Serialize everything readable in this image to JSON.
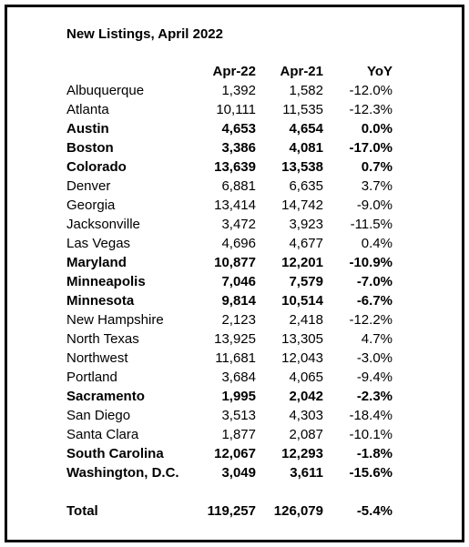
{
  "title": "New Listings, April 2022",
  "table": {
    "columns": [
      "Apr-22",
      "Apr-21",
      "YoY"
    ],
    "rows": [
      {
        "cells": [
          "Albuquerque",
          "1,392",
          "1,582",
          "-12.0%"
        ],
        "bold": false
      },
      {
        "cells": [
          "Atlanta",
          "10,111",
          "11,535",
          "-12.3%"
        ],
        "bold": false
      },
      {
        "cells": [
          "Austin",
          "4,653",
          "4,654",
          "0.0%"
        ],
        "bold": true
      },
      {
        "cells": [
          "Boston",
          "3,386",
          "4,081",
          "-17.0%"
        ],
        "bold": true
      },
      {
        "cells": [
          "Colorado",
          "13,639",
          "13,538",
          "0.7%"
        ],
        "bold": true
      },
      {
        "cells": [
          "Denver",
          "6,881",
          "6,635",
          "3.7%"
        ],
        "bold": false
      },
      {
        "cells": [
          "Georgia",
          "13,414",
          "14,742",
          "-9.0%"
        ],
        "bold": false
      },
      {
        "cells": [
          "Jacksonville",
          "3,472",
          "3,923",
          "-11.5%"
        ],
        "bold": false
      },
      {
        "cells": [
          "Las Vegas",
          "4,696",
          "4,677",
          "0.4%"
        ],
        "bold": false
      },
      {
        "cells": [
          "Maryland",
          "10,877",
          "12,201",
          "-10.9%"
        ],
        "bold": true
      },
      {
        "cells": [
          "Minneapolis",
          "7,046",
          "7,579",
          "-7.0%"
        ],
        "bold": true
      },
      {
        "cells": [
          "Minnesota",
          "9,814",
          "10,514",
          "-6.7%"
        ],
        "bold": true
      },
      {
        "cells": [
          "New Hampshire",
          "2,123",
          "2,418",
          "-12.2%"
        ],
        "bold": false
      },
      {
        "cells": [
          "North Texas",
          "13,925",
          "13,305",
          "4.7%"
        ],
        "bold": false
      },
      {
        "cells": [
          "Northwest",
          "11,681",
          "12,043",
          "-3.0%"
        ],
        "bold": false
      },
      {
        "cells": [
          "Portland",
          "3,684",
          "4,065",
          "-9.4%"
        ],
        "bold": false
      },
      {
        "cells": [
          "Sacramento",
          "1,995",
          "2,042",
          "-2.3%"
        ],
        "bold": true
      },
      {
        "cells": [
          "San Diego",
          "3,513",
          "4,303",
          "-18.4%"
        ],
        "bold": false
      },
      {
        "cells": [
          "Santa Clara",
          "1,877",
          "2,087",
          "-10.1%"
        ],
        "bold": false
      },
      {
        "cells": [
          "South Carolina",
          "12,067",
          "12,293",
          "-1.8%"
        ],
        "bold": true
      },
      {
        "cells": [
          "Washington, D.C.",
          "3,049",
          "3,611",
          "-15.6%"
        ],
        "bold": true
      }
    ],
    "total": {
      "cells": [
        "Total",
        "119,257",
        "126,079",
        "-5.4%"
      ],
      "bold": true
    }
  }
}
